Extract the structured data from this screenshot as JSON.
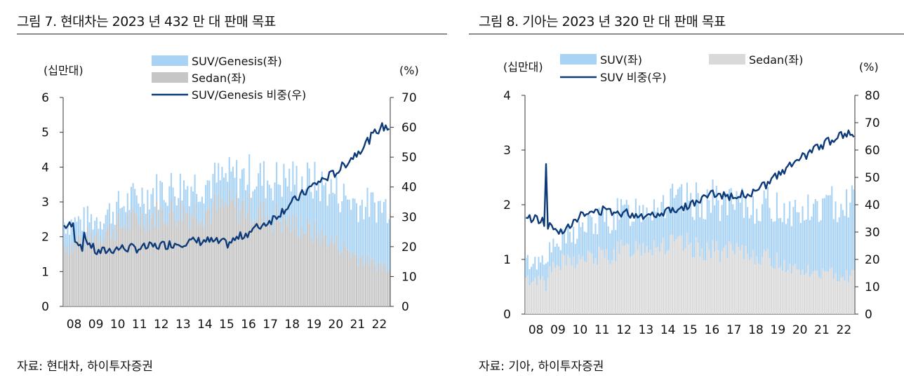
{
  "charts": [
    {
      "figure_title": "그림 7. 현대차는 2023 년 432 만 대 판매 목표",
      "source": "자료: 현대차, 하이투자증권",
      "chart_data": {
        "type": "bar",
        "stacked": true,
        "x_tick_labels": [
          "08",
          "09",
          "10",
          "11",
          "12",
          "13",
          "14",
          "15",
          "16",
          "17",
          "18",
          "19",
          "20",
          "21",
          "22"
        ],
        "left_axis": {
          "unit_label": "(십만대)",
          "range": [
            0,
            6
          ],
          "ticks": [
            "0",
            "1",
            "2",
            "3",
            "4",
            "5",
            "6"
          ]
        },
        "right_axis": {
          "unit_label": "(%)",
          "range": [
            0,
            70
          ],
          "ticks": [
            "0",
            "10",
            "20",
            "30",
            "40",
            "50",
            "60",
            "70"
          ]
        },
        "legend": [
          "SUV/Genesis(좌)",
          "Sedan(좌)",
          "SUV/Genesis 비중(우)"
        ],
        "colors": {
          "suv": "#a9d3f5",
          "sedan": "#c6c6c6",
          "line": "#0d3a78"
        },
        "annual_points": {
          "years": [
            2008,
            2009,
            2010,
            2011,
            2012,
            2013,
            2014,
            2015,
            2016,
            2017,
            2018,
            2019,
            2020,
            2021,
            2022
          ],
          "total": [
            2.55,
            2.65,
            3.0,
            3.35,
            3.55,
            3.65,
            3.75,
            3.85,
            3.95,
            3.8,
            3.85,
            3.75,
            3.45,
            3.1,
            3.05
          ],
          "share": [
            27,
            18,
            19.5,
            19.5,
            20.5,
            21.5,
            22,
            21,
            25,
            29,
            35,
            41,
            45,
            52,
            60
          ]
        }
      }
    },
    {
      "figure_title": "그림 8. 기아는 2023 년 320 만 대 판매 목표",
      "source": "자료: 기아, 하이투자증권",
      "chart_data": {
        "type": "bar",
        "stacked": true,
        "x_tick_labels": [
          "08",
          "09",
          "10",
          "11",
          "12",
          "13",
          "14",
          "15",
          "16",
          "17",
          "18",
          "19",
          "20",
          "21",
          "22"
        ],
        "left_axis": {
          "unit_label": "(십만대)",
          "range": [
            0,
            4
          ],
          "ticks": [
            "0",
            "1",
            "2",
            "3",
            "4"
          ]
        },
        "right_axis": {
          "unit_label": "(%)",
          "range": [
            0,
            80
          ],
          "ticks": [
            "0",
            "10",
            "20",
            "30",
            "40",
            "50",
            "60",
            "70",
            "80"
          ]
        },
        "legend": [
          "SUV(좌)",
          "Sedan(좌)",
          "SUV 비중(우)"
        ],
        "colors": {
          "suv": "#a9d3f5",
          "sedan": "#d9d9d9",
          "line": "#0d3a78"
        },
        "annual_points": {
          "years": [
            2008,
            2009,
            2010,
            2011,
            2012,
            2013,
            2014,
            2015,
            2016,
            2017,
            2018,
            2019,
            2020,
            2021,
            2022
          ],
          "total": [
            1.0,
            1.35,
            1.65,
            1.8,
            1.95,
            2.1,
            2.15,
            2.15,
            2.2,
            2.05,
            2.1,
            2.05,
            1.95,
            2.05,
            2.2
          ],
          "share": [
            35,
            30,
            36,
            38,
            37,
            36,
            38,
            40,
            44,
            43,
            45,
            51,
            57,
            62,
            66
          ]
        }
      }
    }
  ]
}
